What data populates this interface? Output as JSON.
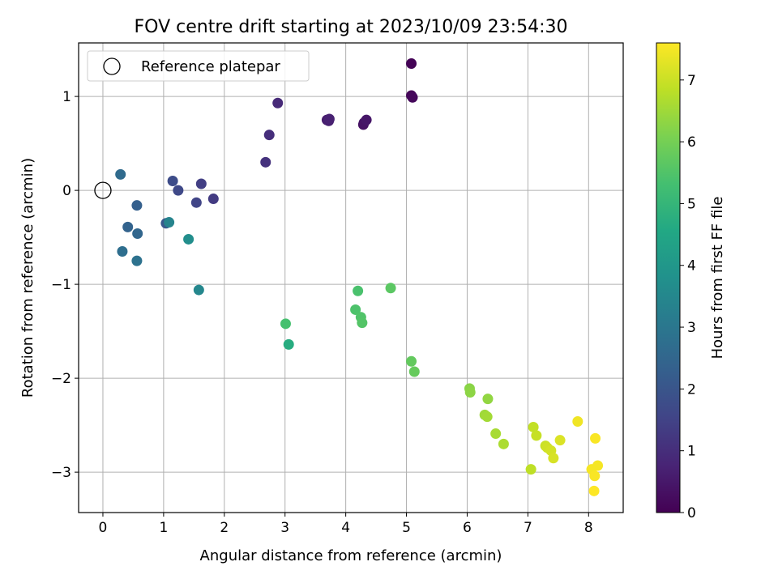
{
  "chart_data": {
    "type": "scatter",
    "title": "FOV centre drift starting at 2023/10/09 23:54:30",
    "xlabel": "Angular distance from reference (arcmin)",
    "ylabel": "Rotation from reference (arcmin)",
    "xlim": [
      -0.4,
      8.57
    ],
    "ylim": [
      -3.43,
      1.57
    ],
    "xticks": [
      0,
      1,
      2,
      3,
      4,
      5,
      6,
      7,
      8
    ],
    "yticks": [
      -3,
      -2,
      -1,
      0,
      1
    ],
    "grid": true,
    "legend": {
      "location": "upper-left",
      "entries": [
        "Reference platepar"
      ]
    },
    "reference_point": {
      "x": 0,
      "y": 0
    },
    "colorbar": {
      "label": "Hours from first FF file",
      "range": [
        0,
        7.6
      ],
      "ticks": [
        0,
        1,
        2,
        3,
        4,
        5,
        6,
        7
      ],
      "colormap": "viridis"
    },
    "points": [
      {
        "x": 5.08,
        "y": 1.35,
        "h": 0.05
      },
      {
        "x": 5.08,
        "y": 1.01,
        "h": 0.1
      },
      {
        "x": 5.1,
        "y": 0.99,
        "h": 0.15
      },
      {
        "x": 4.29,
        "y": 0.7,
        "h": 0.35
      },
      {
        "x": 4.3,
        "y": 0.72,
        "h": 0.4
      },
      {
        "x": 4.34,
        "y": 0.75,
        "h": 0.45
      },
      {
        "x": 3.69,
        "y": 0.75,
        "h": 0.6
      },
      {
        "x": 3.72,
        "y": 0.74,
        "h": 0.65
      },
      {
        "x": 3.73,
        "y": 0.76,
        "h": 0.7
      },
      {
        "x": 2.88,
        "y": 0.93,
        "h": 0.9
      },
      {
        "x": 2.74,
        "y": 0.59,
        "h": 1.0
      },
      {
        "x": 2.68,
        "y": 0.3,
        "h": 1.1
      },
      {
        "x": 1.82,
        "y": -0.09,
        "h": 1.3
      },
      {
        "x": 1.62,
        "y": 0.07,
        "h": 1.4
      },
      {
        "x": 1.54,
        "y": -0.13,
        "h": 1.55
      },
      {
        "x": 1.24,
        "y": 0.0,
        "h": 1.65
      },
      {
        "x": 1.15,
        "y": 0.1,
        "h": 1.75
      },
      {
        "x": 1.04,
        "y": -0.35,
        "h": 2.1
      },
      {
        "x": 0.56,
        "y": -0.16,
        "h": 2.3
      },
      {
        "x": 0.41,
        "y": -0.39,
        "h": 2.4
      },
      {
        "x": 0.57,
        "y": -0.46,
        "h": 2.5
      },
      {
        "x": 0.29,
        "y": 0.17,
        "h": 2.65
      },
      {
        "x": 0.32,
        "y": -0.65,
        "h": 2.75
      },
      {
        "x": 0.56,
        "y": -0.75,
        "h": 2.85
      },
      {
        "x": 1.09,
        "y": -0.34,
        "h": 3.4
      },
      {
        "x": 1.58,
        "y": -1.06,
        "h": 3.5
      },
      {
        "x": 1.41,
        "y": -0.52,
        "h": 3.7
      },
      {
        "x": 3.06,
        "y": -1.64,
        "h": 4.7
      },
      {
        "x": 3.01,
        "y": -1.42,
        "h": 5.35
      },
      {
        "x": 4.2,
        "y": -1.07,
        "h": 5.4
      },
      {
        "x": 4.16,
        "y": -1.27,
        "h": 5.45
      },
      {
        "x": 4.25,
        "y": -1.35,
        "h": 5.5
      },
      {
        "x": 4.27,
        "y": -1.41,
        "h": 5.55
      },
      {
        "x": 4.74,
        "y": -1.04,
        "h": 5.65
      },
      {
        "x": 5.08,
        "y": -1.82,
        "h": 5.75
      },
      {
        "x": 5.13,
        "y": -1.93,
        "h": 5.8
      },
      {
        "x": 6.04,
        "y": -2.11,
        "h": 6.25
      },
      {
        "x": 6.05,
        "y": -2.15,
        "h": 6.3
      },
      {
        "x": 6.34,
        "y": -2.22,
        "h": 6.35
      },
      {
        "x": 6.29,
        "y": -2.39,
        "h": 6.5
      },
      {
        "x": 6.33,
        "y": -2.41,
        "h": 6.55
      },
      {
        "x": 6.47,
        "y": -2.59,
        "h": 6.6
      },
      {
        "x": 6.6,
        "y": -2.7,
        "h": 6.65
      },
      {
        "x": 7.05,
        "y": -2.97,
        "h": 6.85
      },
      {
        "x": 7.09,
        "y": -2.52,
        "h": 6.9
      },
      {
        "x": 7.14,
        "y": -2.61,
        "h": 6.95
      },
      {
        "x": 7.29,
        "y": -2.72,
        "h": 7.0
      },
      {
        "x": 7.32,
        "y": -2.74,
        "h": 7.05
      },
      {
        "x": 7.38,
        "y": -2.77,
        "h": 7.1
      },
      {
        "x": 7.42,
        "y": -2.85,
        "h": 7.15
      },
      {
        "x": 7.53,
        "y": -2.66,
        "h": 7.2
      },
      {
        "x": 7.82,
        "y": -2.46,
        "h": 7.45
      },
      {
        "x": 8.05,
        "y": -2.97,
        "h": 7.5
      },
      {
        "x": 8.15,
        "y": -2.93,
        "h": 7.5
      },
      {
        "x": 8.11,
        "y": -2.64,
        "h": 7.55
      },
      {
        "x": 8.1,
        "y": -3.04,
        "h": 7.55
      },
      {
        "x": 8.09,
        "y": -3.2,
        "h": 7.6
      }
    ]
  }
}
